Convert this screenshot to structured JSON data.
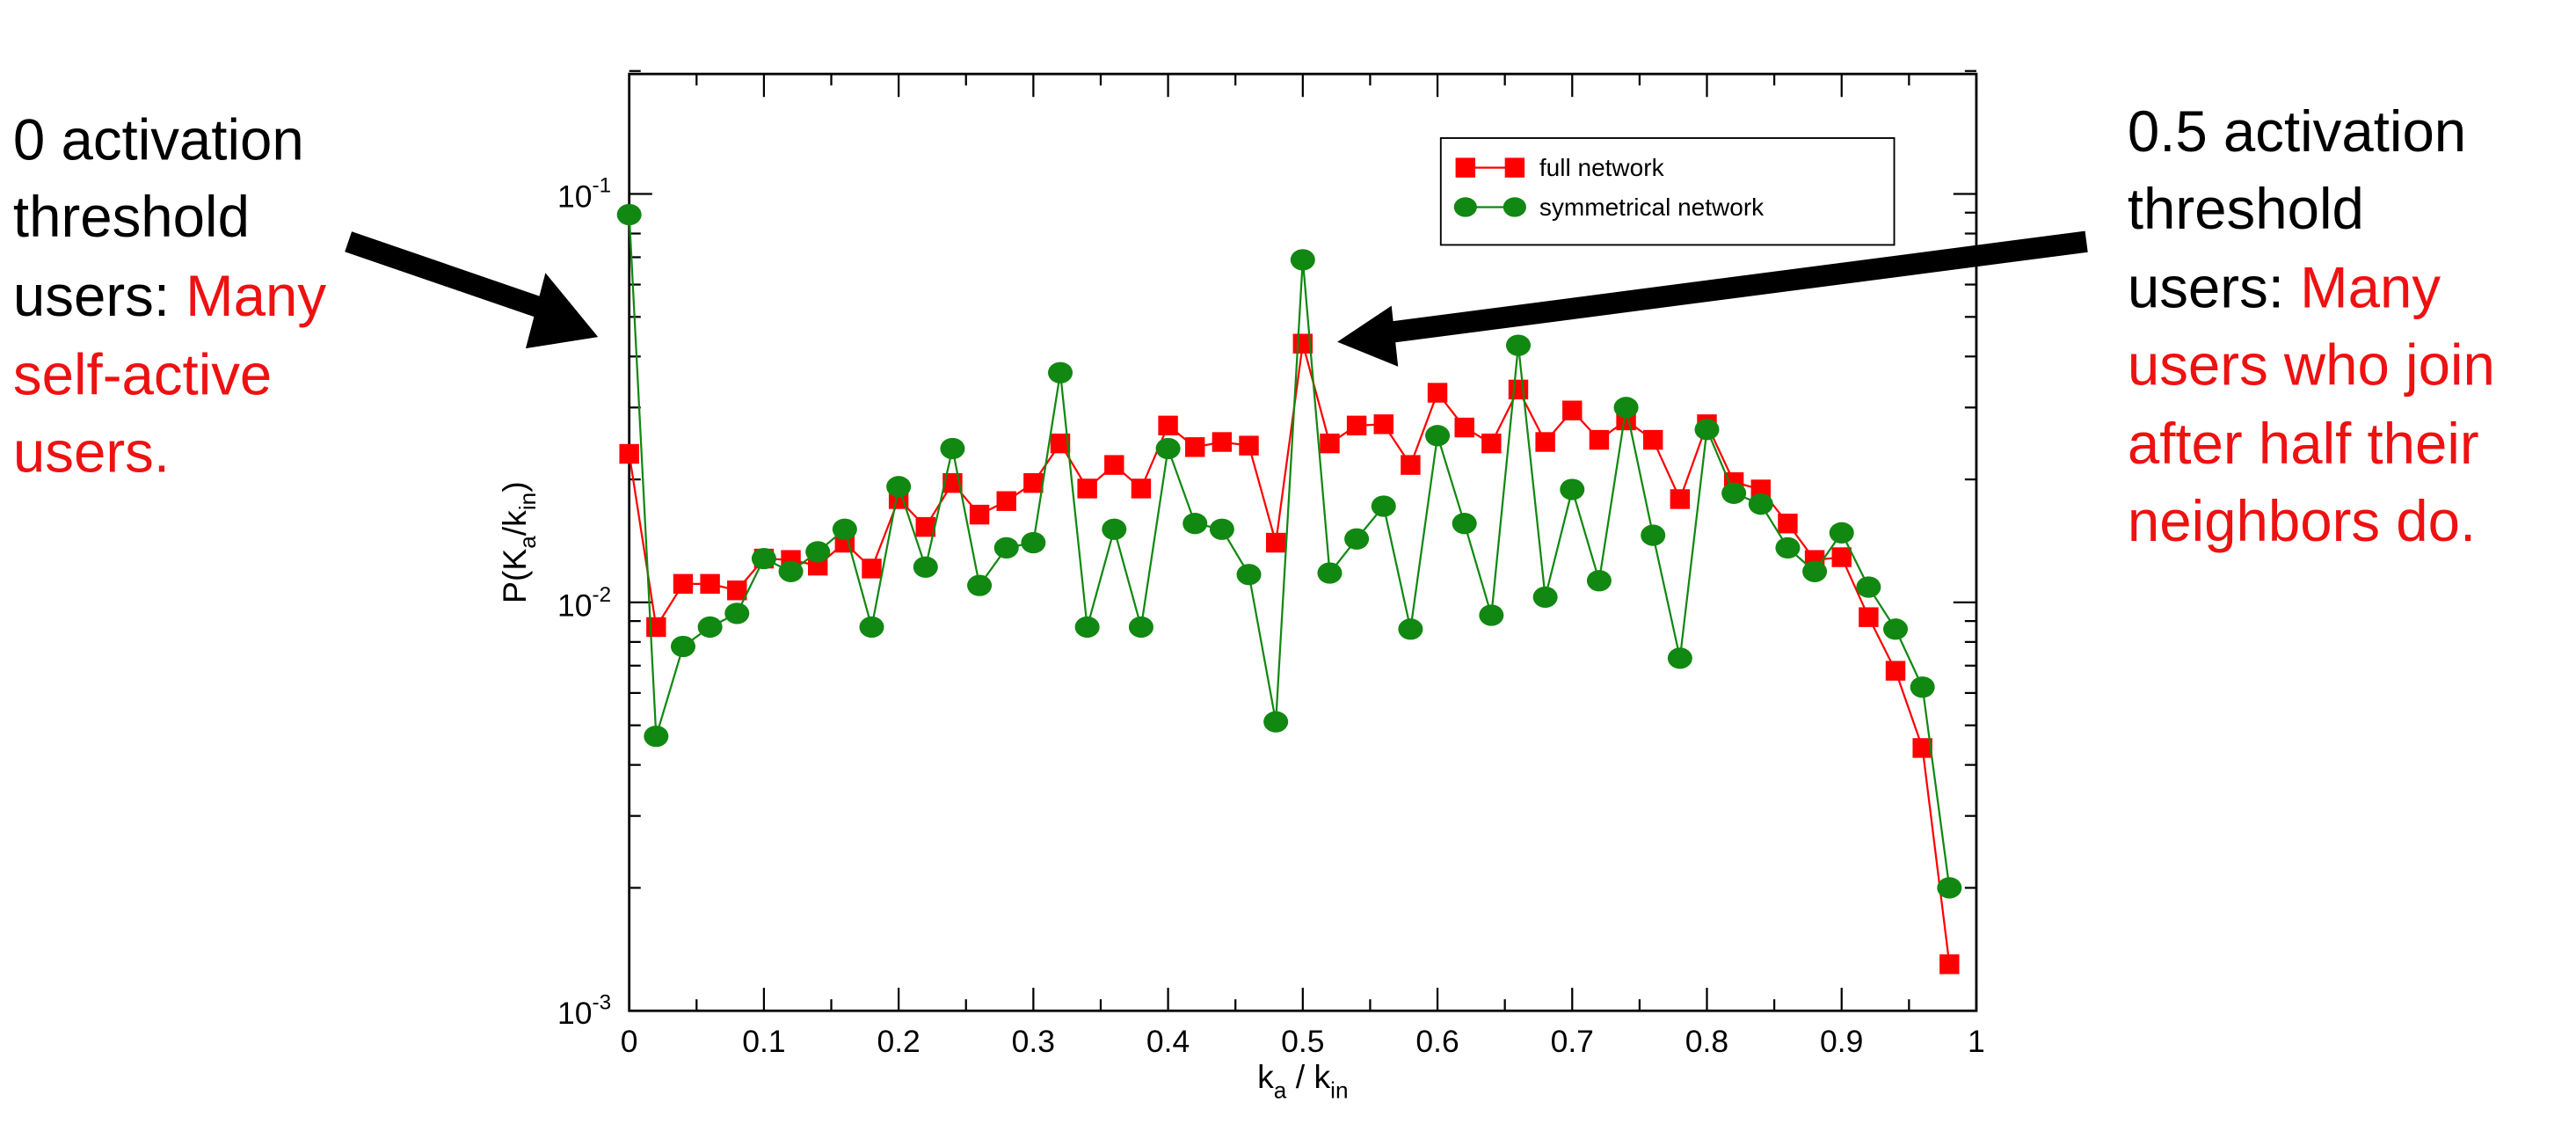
{
  "annotations": {
    "left": {
      "lines": [
        "0 activation",
        "threshold"
      ],
      "prefix": "users: ",
      "red_lines": [
        "Many",
        "self-active",
        "users."
      ]
    },
    "right": {
      "lines": [
        "0.5 activation",
        "threshold"
      ],
      "prefix": "users: ",
      "red_lines": [
        "Many",
        "users who join",
        "after half their",
        "neighbors do."
      ]
    },
    "highlight_color": "#ee1111"
  },
  "chart_data": {
    "type": "line",
    "xlabel": {
      "main1": "k",
      "sub1": "a",
      "main2": " / k",
      "sub2": "in"
    },
    "ylabel": {
      "main1": "P(K",
      "sub1": "a",
      "main2": "/k",
      "sub2": "in",
      "main3": ")"
    },
    "xlim": [
      0,
      1
    ],
    "ylim": [
      0.001,
      0.2
    ],
    "yscale": "log",
    "xticks": [
      "0",
      "0.1",
      "0.2",
      "0.3",
      "0.4",
      "0.5",
      "0.6",
      "0.7",
      "0.8",
      "0.9",
      "1"
    ],
    "yticks": [
      {
        "base": "10",
        "exp": "-1"
      },
      {
        "base": "10",
        "exp": "-2"
      },
      {
        "base": "10",
        "exp": "-3"
      }
    ],
    "grid": false,
    "legend_position": "top-right",
    "x": [
      0,
      0.02,
      0.04,
      0.06,
      0.08,
      0.1,
      0.12,
      0.14,
      0.16,
      0.18,
      0.2,
      0.22,
      0.24,
      0.26,
      0.28,
      0.3,
      0.32,
      0.34,
      0.36,
      0.38,
      0.4,
      0.42,
      0.44,
      0.46,
      0.48,
      0.5,
      0.52,
      0.54,
      0.56,
      0.58,
      0.6,
      0.62,
      0.64,
      0.66,
      0.68,
      0.7,
      0.72,
      0.74,
      0.76,
      0.78,
      0.8,
      0.82,
      0.84,
      0.86,
      0.88,
      0.9,
      0.92,
      0.94,
      0.96,
      0.98
    ],
    "series": [
      {
        "name": "full network",
        "color": "#ff0000",
        "marker": "square",
        "values": [
          0.0231,
          0.0087,
          0.0111,
          0.0111,
          0.0107,
          0.0128,
          0.0127,
          0.0123,
          0.014,
          0.0121,
          0.0179,
          0.0153,
          0.0196,
          0.0164,
          0.0177,
          0.0196,
          0.0245,
          0.019,
          0.0217,
          0.019,
          0.0271,
          0.024,
          0.0247,
          0.0242,
          0.014,
          0.043,
          0.0245,
          0.0271,
          0.0273,
          0.0217,
          0.0326,
          0.0268,
          0.0245,
          0.0332,
          0.0247,
          0.0295,
          0.025,
          0.0279,
          0.025,
          0.0179,
          0.0273,
          0.0197,
          0.0189,
          0.0156,
          0.0127,
          0.0129,
          0.0092,
          0.0068,
          0.0044,
          0.0013
        ]
      },
      {
        "name": "symmetrical network",
        "color": "#118811",
        "marker": "circle",
        "values": [
          0.089,
          0.0047,
          0.0078,
          0.0087,
          0.0094,
          0.0128,
          0.0119,
          0.0133,
          0.0151,
          0.0087,
          0.0192,
          0.0122,
          0.0238,
          0.011,
          0.0136,
          0.014,
          0.0365,
          0.0087,
          0.0151,
          0.0087,
          0.0238,
          0.0156,
          0.0151,
          0.0117,
          0.0051,
          0.069,
          0.0118,
          0.0143,
          0.0172,
          0.0086,
          0.0256,
          0.0156,
          0.0093,
          0.0426,
          0.0103,
          0.0189,
          0.0113,
          0.03,
          0.0146,
          0.0073,
          0.0265,
          0.0185,
          0.0174,
          0.0136,
          0.0119,
          0.0148,
          0.0109,
          0.0086,
          0.0062,
          0.002
        ]
      }
    ]
  }
}
